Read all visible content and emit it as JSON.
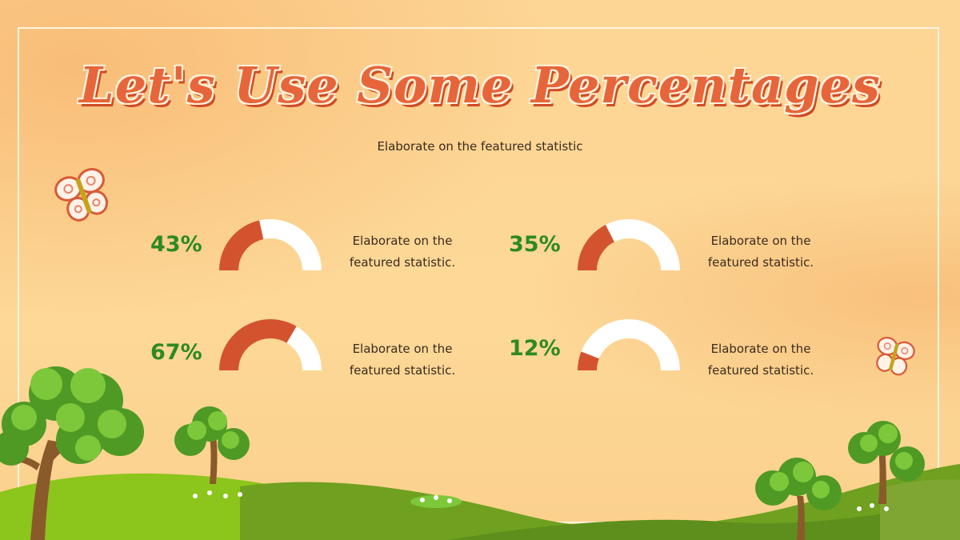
{
  "slide": {
    "title": "Let's Use Some Percentages",
    "subtitle": "Elaborate on the featured statistic"
  },
  "stats": [
    {
      "label": "43%",
      "value": 43,
      "description_line1": "Elaborate on the",
      "description_line2": "featured statistic."
    },
    {
      "label": "35%",
      "value": 35,
      "description_line1": "Elaborate on the",
      "description_line2": "featured statistic."
    },
    {
      "label": "67%",
      "value": 67,
      "description_line1": "Elaborate on the",
      "description_line2": "featured statistic."
    },
    {
      "label": "12%",
      "value": 12,
      "description_line1": "Elaborate on the",
      "description_line2": "featured statistic."
    }
  ],
  "colors": {
    "background": "#fcd796",
    "title": "#e7653a",
    "percentage_text": "#2d8a22",
    "gauge_fill": "#d4532f",
    "gauge_track": "#ffffff",
    "frame": "#fff4e0",
    "grass": "#8fc71e",
    "tree_foliage": "#6cbf2a",
    "tree_trunk": "#8a5a2b"
  },
  "icons": [
    "butterfly-icon",
    "tree-icon",
    "flower-icon"
  ]
}
